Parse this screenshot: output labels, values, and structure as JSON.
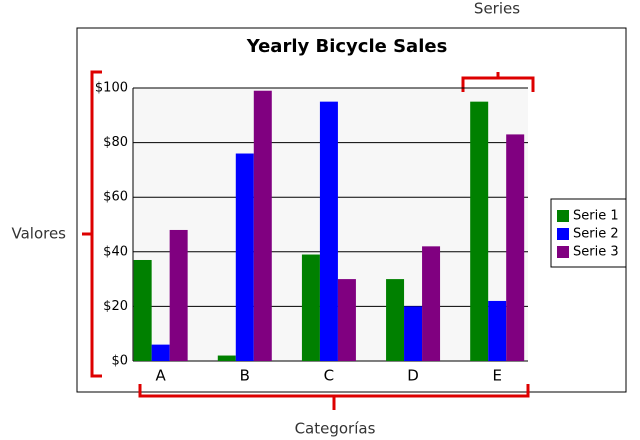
{
  "chart_data": {
    "type": "bar",
    "title": "Yearly Bicycle Sales",
    "categories": [
      "A",
      "B",
      "C",
      "D",
      "E"
    ],
    "series": [
      {
        "name": "Serie 1",
        "color": "#008000",
        "values": [
          37,
          2,
          39,
          30,
          95
        ]
      },
      {
        "name": "Serie 2",
        "color": "#0000ff",
        "values": [
          6,
          76,
          95,
          20,
          22
        ]
      },
      {
        "name": "Serie 3",
        "color": "#800080",
        "values": [
          48,
          99,
          30,
          42,
          83
        ]
      }
    ],
    "ylim": [
      0,
      100
    ],
    "yticks": [
      {
        "value": 0,
        "label": "$0"
      },
      {
        "value": 20,
        "label": "$20"
      },
      {
        "value": 40,
        "label": "$40"
      },
      {
        "value": 60,
        "label": "$60"
      },
      {
        "value": 80,
        "label": "$80"
      },
      {
        "value": 100,
        "label": "$100"
      }
    ],
    "grid": true,
    "legend": "right",
    "annotations": [
      "Series",
      "Valores",
      "Categorías"
    ]
  }
}
